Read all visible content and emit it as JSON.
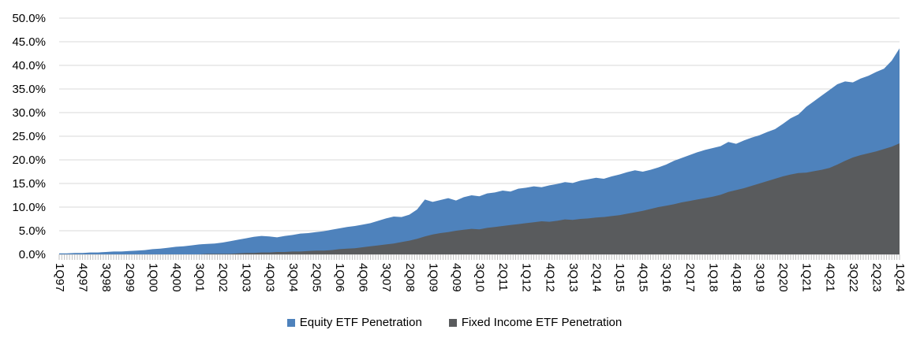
{
  "chart_data": {
    "type": "area",
    "mode": "overlapping",
    "title": "",
    "xlabel": "",
    "ylabel": "",
    "ylim": [
      0,
      50
    ],
    "y_tick_step": 5,
    "grid": true,
    "legend_position": "bottom",
    "y_tick_labels": [
      "0.0%",
      "5.0%",
      "10.0%",
      "15.0%",
      "20.0%",
      "25.0%",
      "30.0%",
      "35.0%",
      "40.0%",
      "45.0%",
      "50.0%"
    ],
    "x_label_every": 3,
    "x_tick_labels_shown": [
      "1Q97",
      "4Q97",
      "3Q98",
      "2Q99",
      "1Q00",
      "4Q00",
      "3Q01",
      "2Q02",
      "1Q03",
      "4Q03",
      "3Q04",
      "2Q05",
      "1Q06",
      "4Q06",
      "3Q07",
      "2Q08",
      "1Q09",
      "4Q09",
      "3Q10",
      "2Q11",
      "1Q12",
      "4Q12",
      "3Q13",
      "2Q14",
      "1Q15",
      "4Q15",
      "3Q16",
      "2Q17",
      "1Q18",
      "4Q18",
      "3Q19",
      "2Q20",
      "1Q21",
      "4Q21",
      "3Q22",
      "2Q23",
      "1Q24"
    ],
    "quarters": [
      "1Q97",
      "2Q97",
      "3Q97",
      "4Q97",
      "1Q98",
      "2Q98",
      "3Q98",
      "4Q98",
      "1Q99",
      "2Q99",
      "3Q99",
      "4Q99",
      "1Q00",
      "2Q00",
      "3Q00",
      "4Q00",
      "1Q01",
      "2Q01",
      "3Q01",
      "4Q01",
      "1Q02",
      "2Q02",
      "3Q02",
      "4Q02",
      "1Q03",
      "2Q03",
      "3Q03",
      "4Q03",
      "1Q04",
      "2Q04",
      "3Q04",
      "4Q04",
      "1Q05",
      "2Q05",
      "3Q05",
      "4Q05",
      "1Q06",
      "2Q06",
      "3Q06",
      "4Q06",
      "1Q07",
      "2Q07",
      "3Q07",
      "4Q07",
      "1Q08",
      "2Q08",
      "3Q08",
      "4Q08",
      "1Q09",
      "2Q09",
      "3Q09",
      "4Q09",
      "1Q10",
      "2Q10",
      "3Q10",
      "4Q10",
      "1Q11",
      "2Q11",
      "3Q11",
      "4Q11",
      "1Q12",
      "2Q12",
      "3Q12",
      "4Q12",
      "1Q13",
      "2Q13",
      "3Q13",
      "4Q13",
      "1Q14",
      "2Q14",
      "3Q14",
      "4Q14",
      "1Q15",
      "2Q15",
      "3Q15",
      "4Q15",
      "1Q16",
      "2Q16",
      "3Q16",
      "4Q16",
      "1Q17",
      "2Q17",
      "3Q17",
      "4Q17",
      "1Q18",
      "2Q18",
      "3Q18",
      "4Q18",
      "1Q19",
      "2Q19",
      "3Q19",
      "4Q19",
      "1Q20",
      "2Q20",
      "3Q20",
      "4Q20",
      "1Q21",
      "2Q21",
      "3Q21",
      "4Q21",
      "1Q22",
      "2Q22",
      "3Q22",
      "4Q22",
      "1Q23",
      "2Q23",
      "3Q23",
      "4Q23",
      "1Q24"
    ],
    "series": [
      {
        "name": "Equity ETF Penetration",
        "color": "#4E82BC",
        "values": [
          0.2,
          0.2,
          0.3,
          0.3,
          0.4,
          0.4,
          0.5,
          0.6,
          0.6,
          0.7,
          0.8,
          0.9,
          1.1,
          1.2,
          1.4,
          1.6,
          1.7,
          1.9,
          2.1,
          2.2,
          2.3,
          2.5,
          2.8,
          3.1,
          3.4,
          3.7,
          3.9,
          3.8,
          3.6,
          3.9,
          4.1,
          4.4,
          4.5,
          4.7,
          4.9,
          5.2,
          5.5,
          5.8,
          6.0,
          6.3,
          6.6,
          7.1,
          7.6,
          8.0,
          7.9,
          8.4,
          9.5,
          11.6,
          11.1,
          11.5,
          11.9,
          11.4,
          12.1,
          12.5,
          12.3,
          12.9,
          13.1,
          13.5,
          13.3,
          13.9,
          14.1,
          14.4,
          14.2,
          14.6,
          14.9,
          15.3,
          15.1,
          15.6,
          15.9,
          16.2,
          16.0,
          16.5,
          16.9,
          17.4,
          17.8,
          17.5,
          17.9,
          18.4,
          19.0,
          19.8,
          20.4,
          21.0,
          21.6,
          22.1,
          22.5,
          22.9,
          23.8,
          23.4,
          24.1,
          24.7,
          25.2,
          25.9,
          26.5,
          27.6,
          28.8,
          29.6,
          31.2,
          32.4,
          33.6,
          34.8,
          36.0,
          36.6,
          36.4,
          37.2,
          37.8,
          38.6,
          39.3,
          41.0,
          43.6
        ]
      },
      {
        "name": "Fixed Income ETF Penetration",
        "color": "#595B5D",
        "values": [
          0,
          0,
          0,
          0,
          0,
          0,
          0,
          0,
          0,
          0,
          0,
          0,
          0,
          0,
          0,
          0,
          0,
          0,
          0,
          0.1,
          0.1,
          0.1,
          0.1,
          0.2,
          0.3,
          0.3,
          0.4,
          0.4,
          0.5,
          0.5,
          0.6,
          0.6,
          0.7,
          0.8,
          0.8,
          0.9,
          1.1,
          1.2,
          1.3,
          1.5,
          1.7,
          1.9,
          2.1,
          2.3,
          2.6,
          2.9,
          3.3,
          3.8,
          4.2,
          4.5,
          4.7,
          5.0,
          5.2,
          5.4,
          5.3,
          5.6,
          5.8,
          6.0,
          6.2,
          6.4,
          6.6,
          6.8,
          7.0,
          6.9,
          7.1,
          7.4,
          7.3,
          7.5,
          7.6,
          7.8,
          7.9,
          8.1,
          8.3,
          8.6,
          8.9,
          9.2,
          9.6,
          10.0,
          10.3,
          10.6,
          11.0,
          11.3,
          11.6,
          11.9,
          12.2,
          12.6,
          13.2,
          13.6,
          14.0,
          14.5,
          15.0,
          15.5,
          16.0,
          16.5,
          16.9,
          17.2,
          17.3,
          17.6,
          17.9,
          18.3,
          19.0,
          19.8,
          20.5,
          21.0,
          21.4,
          21.8,
          22.3,
          22.8,
          23.5
        ]
      }
    ]
  },
  "legend": {
    "items": [
      {
        "label": "Equity ETF Penetration",
        "color": "#4E82BC"
      },
      {
        "label": "Fixed Income ETF Penetration",
        "color": "#595B5D"
      }
    ]
  },
  "colors": {
    "background": "#FFFFFF",
    "gridline": "#D9D9D9",
    "tick": "#BFBFBF",
    "axis_text": "#000000"
  }
}
